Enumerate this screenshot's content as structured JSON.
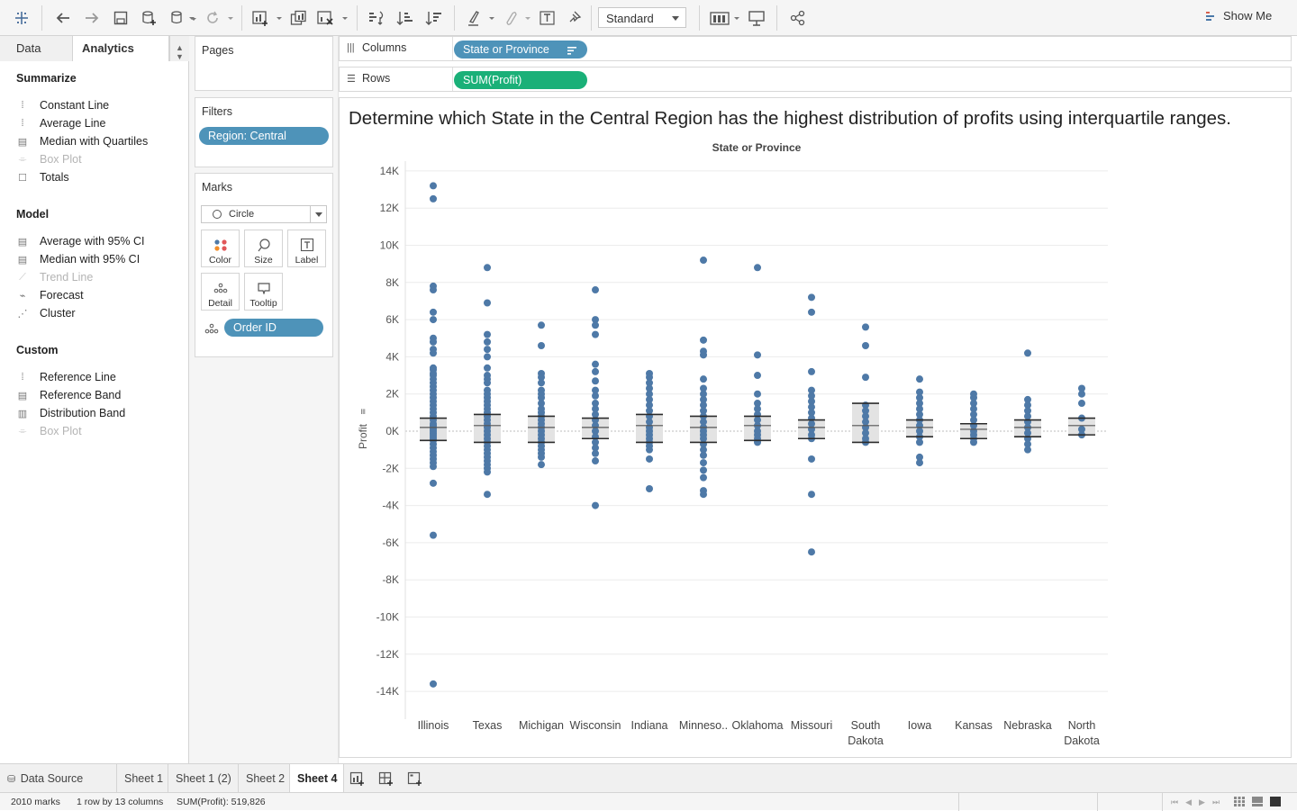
{
  "toolbar": {
    "fit_value": "Standard",
    "show_me_label": "Show Me",
    "icons": [
      "tableau-logo-icon",
      "undo-icon",
      "redo-icon",
      "save-icon",
      "new-datasource-icon",
      "pause-updates-icon",
      "refresh-icon",
      "new-worksheet-icon",
      "duplicate-sheet-icon",
      "clear-sheet-icon",
      "swap-axes-icon",
      "sort-ascending-icon",
      "sort-descending-icon",
      "highlight-icon",
      "group-icon",
      "label-icon",
      "pin-icon",
      "fit-icon",
      "presentation-icon",
      "share-icon"
    ]
  },
  "left_panel": {
    "tab_data": "Data",
    "tab_analytics": "Analytics",
    "sections": [
      {
        "title": "Summarize",
        "items": [
          {
            "label": "Constant Line",
            "icon": "constant-line-icon",
            "enabled": true
          },
          {
            "label": "Average Line",
            "icon": "average-line-icon",
            "enabled": true
          },
          {
            "label": "Median with Quartiles",
            "icon": "median-quartiles-icon",
            "enabled": true
          },
          {
            "label": "Box Plot",
            "icon": "box-plot-icon",
            "enabled": false
          },
          {
            "label": "Totals",
            "icon": "totals-icon",
            "enabled": true
          }
        ]
      },
      {
        "title": "Model",
        "items": [
          {
            "label": "Average with 95% CI",
            "icon": "average-ci-icon",
            "enabled": true
          },
          {
            "label": "Median with 95% CI",
            "icon": "median-ci-icon",
            "enabled": true
          },
          {
            "label": "Trend Line",
            "icon": "trend-line-icon",
            "enabled": false
          },
          {
            "label": "Forecast",
            "icon": "forecast-icon",
            "enabled": true
          },
          {
            "label": "Cluster",
            "icon": "cluster-icon",
            "enabled": true
          }
        ]
      },
      {
        "title": "Custom",
        "items": [
          {
            "label": "Reference Line",
            "icon": "reference-line-icon",
            "enabled": true
          },
          {
            "label": "Reference Band",
            "icon": "reference-band-icon",
            "enabled": true
          },
          {
            "label": "Distribution Band",
            "icon": "distribution-band-icon",
            "enabled": true
          },
          {
            "label": "Box Plot",
            "icon": "box-plot-icon",
            "enabled": false
          }
        ]
      }
    ]
  },
  "cards": {
    "pages_title": "Pages",
    "filters_title": "Filters",
    "filter_pill": "Region: Central",
    "marks_title": "Marks",
    "mark_type": "Circle",
    "mark_buttons": [
      "Color",
      "Size",
      "Label",
      "Detail",
      "Tooltip"
    ],
    "detail_pill": "Order ID"
  },
  "shelves": {
    "columns_label": "Columns",
    "columns_pill": "State or Province",
    "rows_label": "Rows",
    "rows_pill": "SUM(Profit)"
  },
  "view": {
    "title": "Determine which State in the Central Region has the highest distribution of profits using interquartile ranges.",
    "column_header": "State or Province"
  },
  "chart_data": {
    "type": "scatter",
    "xlabel": "",
    "ylabel": "Profit",
    "ylim": [
      -14700,
      14700
    ],
    "yticks": [
      14000,
      12000,
      10000,
      8000,
      6000,
      4000,
      2000,
      0,
      -2000,
      -4000,
      -6000,
      -8000,
      -10000,
      -12000,
      -14000
    ],
    "ytick_labels": [
      "14K",
      "12K",
      "10K",
      "8K",
      "6K",
      "4K",
      "2K",
      "0K",
      "-2K",
      "-4K",
      "-6K",
      "-8K",
      "-10K",
      "-12K",
      "-14K"
    ],
    "categories": [
      "Illinois",
      "Texas",
      "Michigan",
      "Wisconsin",
      "Indiana",
      "Minneso..",
      "Oklahoma",
      "Missouri",
      "South Dakota",
      "Iowa",
      "Kansas",
      "Nebraska",
      "North Dakota"
    ],
    "category_labels": [
      [
        "Illinois"
      ],
      [
        "Texas"
      ],
      [
        "Michigan"
      ],
      [
        "Wisconsin"
      ],
      [
        "Indiana"
      ],
      [
        "Minneso.."
      ],
      [
        "Oklahoma"
      ],
      [
        "Missouri"
      ],
      [
        "South",
        "Dakota"
      ],
      [
        "Iowa"
      ],
      [
        "Kansas"
      ],
      [
        "Nebraska"
      ],
      [
        "North",
        "Dakota"
      ]
    ],
    "color": "#4e79a7",
    "grid": true,
    "points": [
      [
        13200,
        12500,
        7800,
        7600,
        6400,
        6000,
        5000,
        4800,
        4400,
        4200,
        3400,
        3300,
        3100,
        3000,
        2800,
        2600,
        2400,
        2200,
        2000,
        1800,
        1600,
        1400,
        1200,
        1000,
        800,
        600,
        400,
        300,
        200,
        100,
        0,
        -100,
        -200,
        -300,
        -400,
        -500,
        -700,
        -900,
        -1100,
        -1300,
        -1500,
        -1700,
        -1900,
        -2800,
        -5600,
        -13600
      ],
      [
        8800,
        6900,
        5200,
        4800,
        4400,
        4000,
        3400,
        3000,
        2800,
        2600,
        2200,
        2000,
        1800,
        1600,
        1400,
        1200,
        1000,
        800,
        600,
        400,
        200,
        0,
        -200,
        -400,
        -600,
        -800,
        -1000,
        -1200,
        -1400,
        -1600,
        -1800,
        -2000,
        -2200,
        -3400
      ],
      [
        5700,
        4600,
        3100,
        2900,
        2600,
        2200,
        2000,
        1800,
        1500,
        1200,
        1000,
        800,
        600,
        400,
        200,
        0,
        -200,
        -400,
        -600,
        -800,
        -1000,
        -1200,
        -1400,
        -1800
      ],
      [
        7600,
        6000,
        5700,
        5200,
        3600,
        3200,
        2700,
        2200,
        1900,
        1500,
        1200,
        900,
        600,
        300,
        0,
        -300,
        -600,
        -900,
        -1200,
        -1600,
        -4000
      ],
      [
        3100,
        2900,
        2600,
        2300,
        2000,
        1700,
        1400,
        1100,
        800,
        500,
        200,
        0,
        -200,
        -400,
        -600,
        -800,
        -1000,
        -1500,
        -3100
      ],
      [
        9200,
        4900,
        4300,
        4100,
        2800,
        2300,
        2000,
        1700,
        1400,
        1100,
        800,
        500,
        200,
        0,
        -200,
        -400,
        -700,
        -1000,
        -1300,
        -1700,
        -2100,
        -2500,
        -3200,
        -3400
      ],
      [
        8800,
        4100,
        3000,
        2000,
        1500,
        1200,
        900,
        600,
        300,
        0,
        -200,
        -400,
        -600
      ],
      [
        7200,
        6400,
        3200,
        2200,
        1900,
        1600,
        1300,
        1000,
        700,
        400,
        100,
        -200,
        -400,
        -1500,
        -3400,
        -6500
      ],
      [
        5600,
        4600,
        2900,
        1400,
        1100,
        800,
        500,
        200,
        -100,
        -400,
        -600
      ],
      [
        2800,
        2100,
        1800,
        1500,
        1200,
        900,
        600,
        300,
        0,
        -300,
        -600,
        -1400,
        -1700
      ],
      [
        2000,
        1800,
        1500,
        1200,
        900,
        600,
        300,
        0,
        -200,
        -400,
        -600
      ],
      [
        4200,
        1700,
        1400,
        1100,
        800,
        500,
        200,
        -100,
        -400,
        -700,
        -1000
      ],
      [
        2300,
        2000,
        1500,
        700,
        100,
        -200
      ]
    ],
    "boxes": [
      {
        "q1": -500,
        "median": 200,
        "q3": 700,
        "upper": 700,
        "lower": -500
      },
      {
        "q1": -600,
        "median": 300,
        "q3": 900,
        "upper": 900,
        "lower": -600
      },
      {
        "q1": -600,
        "median": 200,
        "q3": 800,
        "upper": 800,
        "lower": -600
      },
      {
        "q1": -400,
        "median": 200,
        "q3": 700,
        "upper": 700,
        "lower": -400
      },
      {
        "q1": -600,
        "median": 300,
        "q3": 900,
        "upper": 900,
        "lower": -600
      },
      {
        "q1": -600,
        "median": 200,
        "q3": 800,
        "upper": 800,
        "lower": -600
      },
      {
        "q1": -500,
        "median": 300,
        "q3": 800,
        "upper": 800,
        "lower": -500
      },
      {
        "q1": -400,
        "median": 200,
        "q3": 600,
        "upper": 600,
        "lower": -400
      },
      {
        "q1": -600,
        "median": 300,
        "q3": 1500,
        "upper": 1500,
        "lower": -600
      },
      {
        "q1": -300,
        "median": 200,
        "q3": 600,
        "upper": 600,
        "lower": -300
      },
      {
        "q1": -400,
        "median": 100,
        "q3": 400,
        "upper": 400,
        "lower": -400
      },
      {
        "q1": -300,
        "median": 200,
        "q3": 600,
        "upper": 600,
        "lower": -300
      },
      {
        "q1": -200,
        "median": 300,
        "q3": 700,
        "upper": 700,
        "lower": -200
      }
    ]
  },
  "sheets": {
    "data_source": "Data Source",
    "tabs": [
      "Sheet 1",
      "Sheet 1 (2)",
      "Sheet 2",
      "Sheet 4"
    ],
    "active": "Sheet 4"
  },
  "status": {
    "marks": "2010 marks",
    "dims": "1 row by 13 columns",
    "sum": "SUM(Profit): 519,826"
  }
}
